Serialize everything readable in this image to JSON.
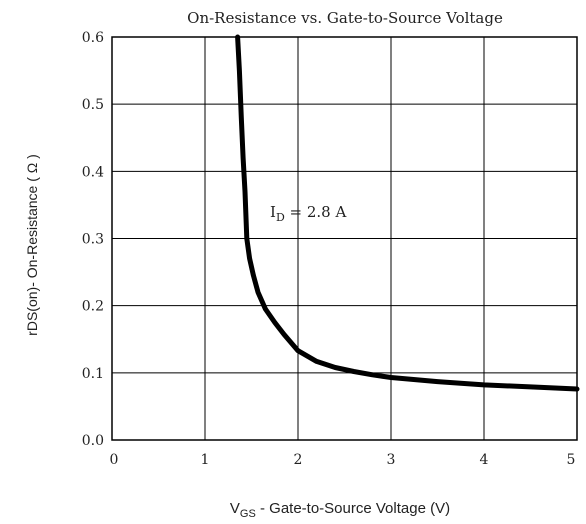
{
  "chart_data": {
    "type": "line",
    "title": "On-Resistance vs. Gate-to-Source Voltage",
    "xlabel": {
      "main": "V",
      "sub": "GS",
      "rest": " - Gate-to-Source Voltage (V)"
    },
    "ylabel": "rDS(on)-  On-Resistance ( Ω )",
    "xlim": [
      0,
      5
    ],
    "ylim": [
      0.0,
      0.6
    ],
    "x_ticks": [
      "0",
      "1",
      "2",
      "3",
      "4",
      "5"
    ],
    "y_ticks": [
      "0.0",
      "0.1",
      "0.2",
      "0.3",
      "0.4",
      "0.5",
      "0.6"
    ],
    "grid": true,
    "annotation": {
      "main": "I",
      "sub": "D",
      "rest": " = 2.8 A"
    },
    "series": [
      {
        "x": [
          1.35,
          1.37,
          1.39,
          1.41,
          1.43,
          1.45,
          1.48,
          1.52,
          1.57,
          1.65,
          1.75,
          1.85,
          2.0,
          2.2,
          2.4,
          2.6,
          2.8,
          3.0,
          3.5,
          4.0,
          4.5,
          5.0
        ],
        "y": [
          0.6,
          0.55,
          0.48,
          0.42,
          0.37,
          0.3,
          0.27,
          0.245,
          0.22,
          0.195,
          0.175,
          0.157,
          0.133,
          0.117,
          0.108,
          0.102,
          0.097,
          0.093,
          0.087,
          0.082,
          0.079,
          0.076
        ]
      }
    ]
  }
}
